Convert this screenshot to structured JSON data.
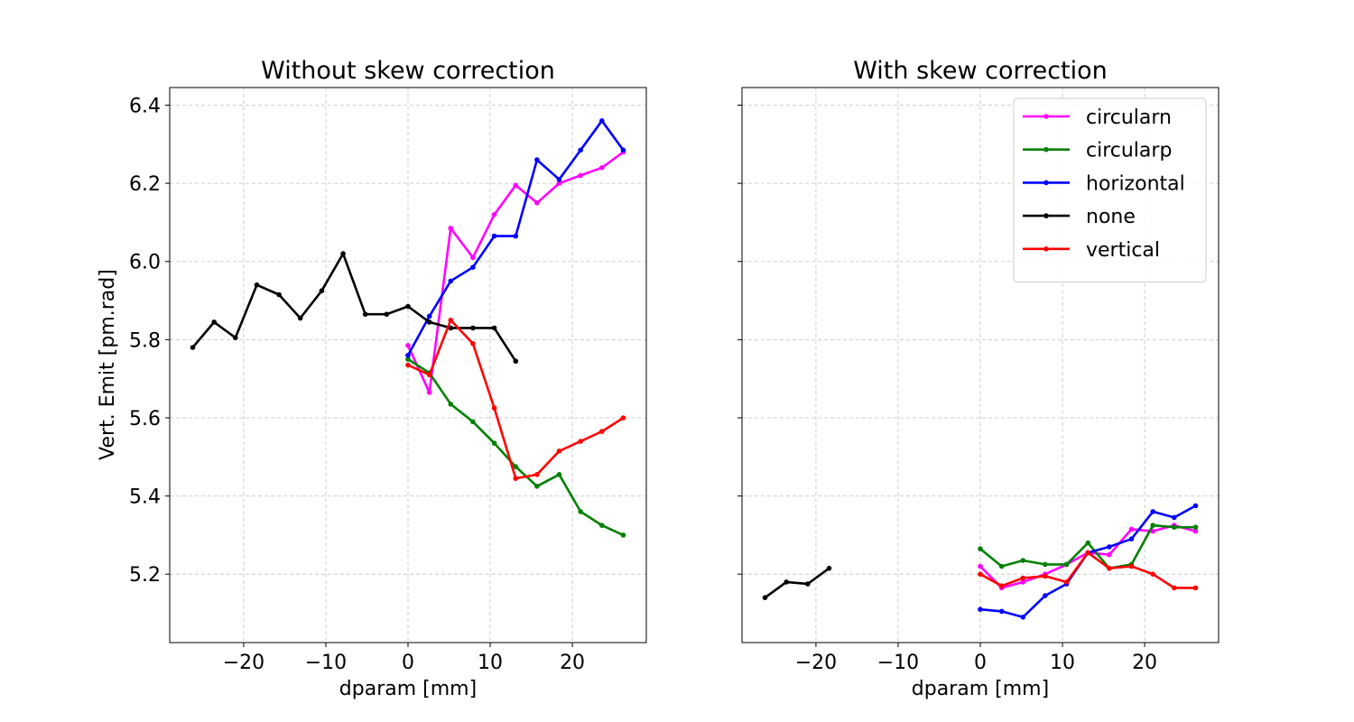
{
  "chart_data": [
    {
      "type": "line",
      "title": "Without skew correction",
      "xlabel": "dparam [mm]",
      "ylabel": "Vert. Emit [pm.rad]",
      "xlim": [
        -29,
        29
      ],
      "ylim": [
        5.025,
        6.445
      ],
      "xticks": [
        -20,
        -10,
        0,
        10,
        20
      ],
      "xtick_labels": [
        "−20",
        "−10",
        "0",
        "10",
        "20"
      ],
      "yticks": [
        5.2,
        5.4,
        5.6,
        5.8,
        6.0,
        6.2,
        6.4
      ],
      "ytick_labels": [
        "5.2",
        "5.4",
        "5.6",
        "5.8",
        "6.0",
        "6.2",
        "6.4"
      ],
      "grid": true,
      "series": [
        {
          "name": "circularn",
          "color": "#ff00ff",
          "x": [
            0,
            2.6,
            5.2,
            7.9,
            10.5,
            13.1,
            15.7,
            18.4,
            21.0,
            23.6,
            26.2
          ],
          "y": [
            5.785,
            5.665,
            6.085,
            6.01,
            6.12,
            6.195,
            6.15,
            6.2,
            6.22,
            6.24,
            6.28
          ]
        },
        {
          "name": "circularp",
          "color": "#008000",
          "x": [
            0,
            2.6,
            5.2,
            7.9,
            10.5,
            13.1,
            15.7,
            18.4,
            21.0,
            23.6,
            26.2
          ],
          "y": [
            5.75,
            5.715,
            5.635,
            5.59,
            5.535,
            5.475,
            5.425,
            5.455,
            5.36,
            5.325,
            5.3
          ]
        },
        {
          "name": "horizontal",
          "color": "#0000ff",
          "x": [
            0,
            2.6,
            5.2,
            7.9,
            10.5,
            13.1,
            15.7,
            18.4,
            21.0,
            23.6,
            26.2
          ],
          "y": [
            5.76,
            5.86,
            5.95,
            5.985,
            6.065,
            6.065,
            6.26,
            6.21,
            6.285,
            6.36,
            6.285
          ]
        },
        {
          "name": "none",
          "color": "#000000",
          "x": [
            -26.2,
            -23.6,
            -21.0,
            -18.4,
            -15.7,
            -13.1,
            -10.5,
            -7.9,
            -5.2,
            -2.6,
            0,
            2.6,
            5.2,
            7.9,
            10.5,
            13.1
          ],
          "y": [
            5.78,
            5.845,
            5.805,
            5.94,
            5.915,
            5.855,
            5.925,
            6.02,
            5.865,
            5.865,
            5.885,
            5.845,
            5.83,
            5.83,
            5.83,
            5.745
          ]
        },
        {
          "name": "vertical",
          "color": "#ff0000",
          "x": [
            0,
            2.6,
            5.2,
            7.9,
            10.5,
            13.1,
            15.7,
            18.4,
            21.0,
            23.6,
            26.2
          ],
          "y": [
            5.735,
            5.71,
            5.85,
            5.79,
            5.625,
            5.445,
            5.455,
            5.515,
            5.54,
            5.565,
            5.6
          ]
        }
      ]
    },
    {
      "type": "line",
      "title": "With skew correction",
      "xlabel": "dparam [mm]",
      "ylabel": "",
      "xlim": [
        -29,
        29
      ],
      "ylim": [
        5.025,
        6.445
      ],
      "xticks": [
        -20,
        -10,
        0,
        10,
        20
      ],
      "xtick_labels": [
        "−20",
        "−10",
        "0",
        "10",
        "20"
      ],
      "yticks": [
        5.2,
        5.4,
        5.6,
        5.8,
        6.0,
        6.2,
        6.4
      ],
      "grid": true,
      "legend": "top-right",
      "series": [
        {
          "name": "circularn",
          "color": "#ff00ff",
          "x": [
            0,
            2.6,
            5.2,
            7.9,
            10.5,
            13.1,
            15.7,
            18.4,
            21.0,
            23.6,
            26.2
          ],
          "y": [
            5.22,
            5.165,
            5.18,
            5.2,
            5.225,
            5.255,
            5.25,
            5.315,
            5.31,
            5.325,
            5.31
          ]
        },
        {
          "name": "circularp",
          "color": "#008000",
          "x": [
            0,
            2.6,
            5.2,
            7.9,
            10.5,
            13.1,
            15.7,
            18.4,
            21.0,
            23.6,
            26.2
          ],
          "y": [
            5.265,
            5.22,
            5.235,
            5.225,
            5.225,
            5.28,
            5.215,
            5.225,
            5.325,
            5.32,
            5.32
          ]
        },
        {
          "name": "horizontal",
          "color": "#0000ff",
          "x": [
            0,
            2.6,
            5.2,
            7.9,
            10.5,
            13.1,
            15.7,
            18.4,
            21.0,
            23.6,
            26.2
          ],
          "y": [
            5.11,
            5.105,
            5.09,
            5.145,
            5.175,
            5.255,
            5.27,
            5.29,
            5.36,
            5.345,
            5.375
          ]
        },
        {
          "name": "none",
          "color": "#000000",
          "x": [
            -26.2,
            -23.6,
            -21.0,
            -18.4
          ],
          "y": [
            5.14,
            5.18,
            5.175,
            5.215
          ]
        },
        {
          "name": "vertical",
          "color": "#ff0000",
          "x": [
            0,
            2.6,
            5.2,
            7.9,
            10.5,
            13.1,
            15.7,
            18.4,
            21.0,
            23.6,
            26.2
          ],
          "y": [
            5.2,
            5.17,
            5.19,
            5.195,
            5.18,
            5.255,
            5.215,
            5.22,
            5.2,
            5.165,
            5.165
          ]
        }
      ]
    }
  ]
}
